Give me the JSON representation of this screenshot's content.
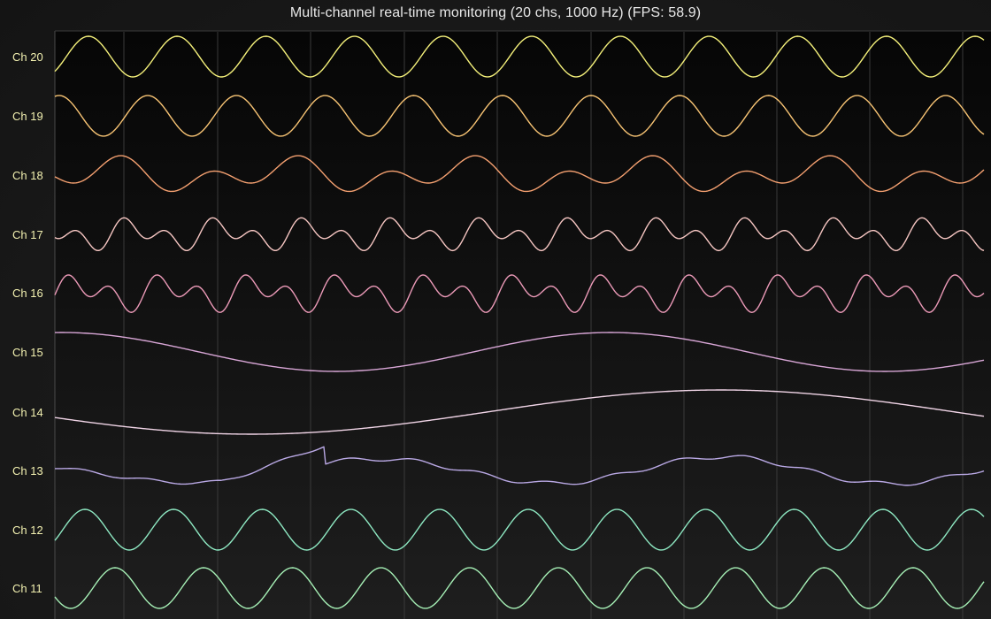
{
  "app": {
    "title": "Multi-channel real-time monitoring (20 chs, 1000 Hz) (FPS: 58.9)"
  },
  "colors": {
    "background": "#141414",
    "plot_background": "#0c0c0c",
    "gridline": "#3a3a3a",
    "label": "#f2f0b0"
  },
  "chart_data": {
    "type": "line",
    "title": "Multi-channel real-time monitoring (20 chs, 1000 Hz) (FPS: 58.9)",
    "sample_rate_hz": 1000,
    "channel_count": 20,
    "fps": 58.9,
    "grid": true,
    "visible_channels": [
      "Ch 20",
      "Ch 19",
      "Ch 18",
      "Ch 17",
      "Ch 16",
      "Ch 15",
      "Ch 14",
      "Ch 13",
      "Ch 12",
      "Ch 11"
    ],
    "series": [
      {
        "name": "Ch 20",
        "color": "#f4f07a",
        "waveform": "sine",
        "cycles_visible": 10.5
      },
      {
        "name": "Ch 19",
        "color": "#f8c474",
        "waveform": "sine",
        "cycles_visible": 10.5
      },
      {
        "name": "Ch 18",
        "color": "#f4a070",
        "waveform": "sine-sum",
        "cycles_visible": 10.5
      },
      {
        "name": "Ch 17",
        "color": "#f6c6c2",
        "waveform": "sine-sum",
        "cycles_visible": 10.5
      },
      {
        "name": "Ch 16",
        "color": "#ec9ab8",
        "waveform": "sine-sum",
        "cycles_visible": 10.5
      },
      {
        "name": "Ch 15",
        "color": "#d8a6d6",
        "waveform": "sine",
        "cycles_visible": 1.7
      },
      {
        "name": "Ch 14",
        "color": "#f0d4e6",
        "waveform": "sine",
        "cycles_visible": 0.8
      },
      {
        "name": "Ch 13",
        "color": "#b9a8e4",
        "waveform": "sine-sum",
        "cycles_visible": 3.5
      },
      {
        "name": "Ch 12",
        "color": "#8ee8c2",
        "waveform": "sine",
        "cycles_visible": 10.5
      },
      {
        "name": "Ch 11",
        "color": "#a6f0b6",
        "waveform": "sine",
        "cycles_visible": 10.5
      }
    ]
  }
}
